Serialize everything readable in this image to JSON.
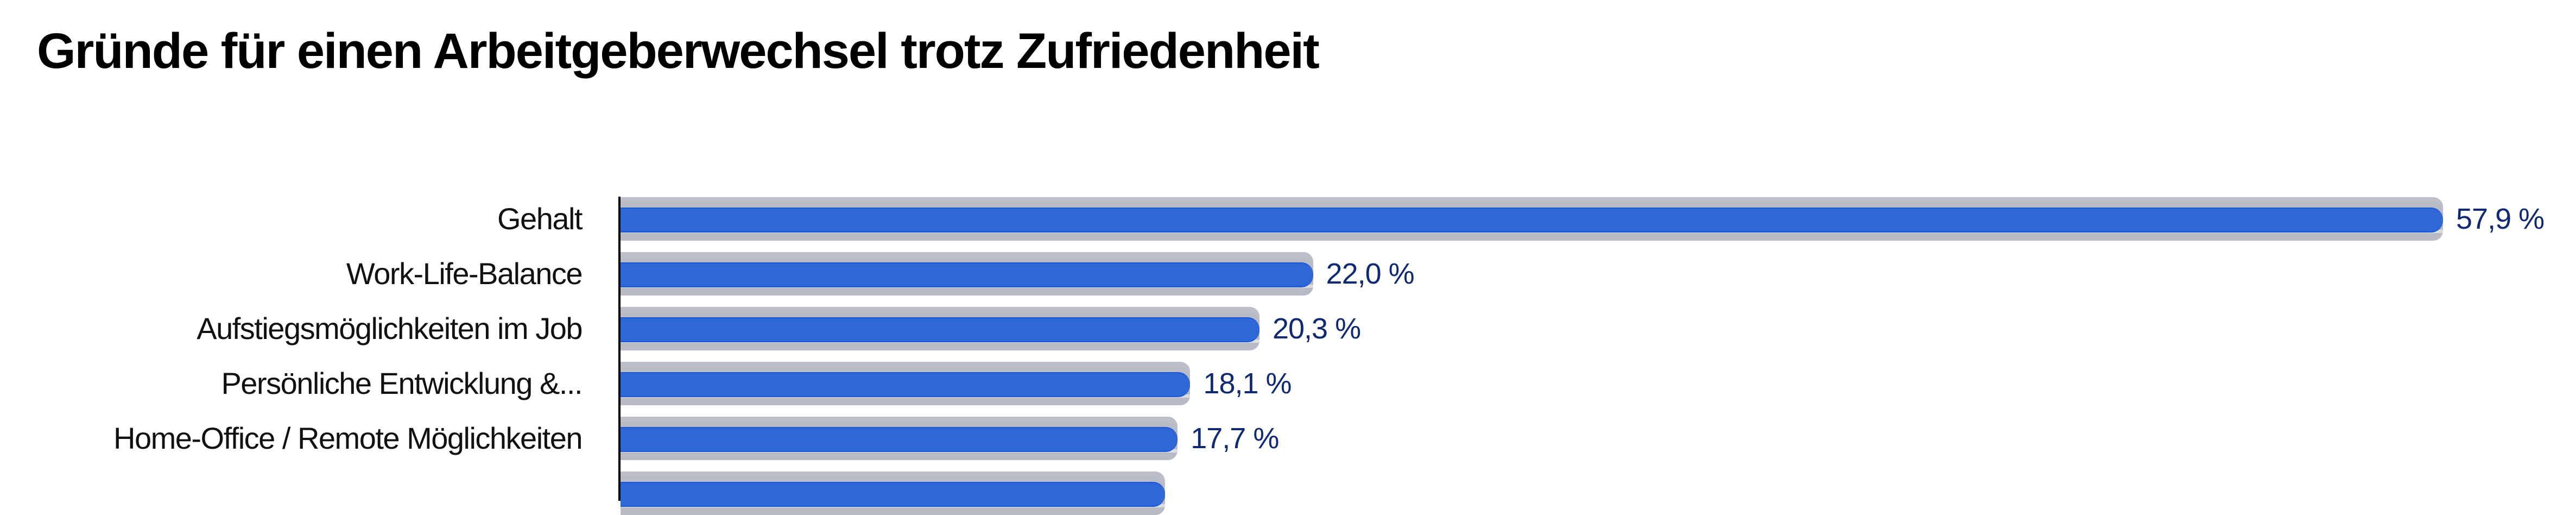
{
  "title": "Gründe für einen Arbeitgeberwechsel trotz Zufriedenheit",
  "colors": {
    "bar": "#2d68d6",
    "bar_background": "#b9bcc7",
    "value_label": "#0f2a73",
    "axis": "#000000"
  },
  "chart_data": {
    "type": "bar",
    "orientation": "horizontal",
    "title": "Gründe für einen Arbeitgeberwechsel trotz Zufriedenheit",
    "xlabel": "",
    "ylabel": "",
    "unit": "%",
    "categories": [
      "Gehalt",
      "Work-Life-Balance",
      "Aufstiegsmöglichkeiten im Job",
      "Persönliche Entwicklung &...",
      "Home-Office / Remote Möglichkeiten",
      ""
    ],
    "values": [
      57.9,
      22.0,
      20.3,
      18.1,
      17.7,
      17.3
    ],
    "value_labels": [
      "57,9 %",
      "22,0 %",
      "20,3 %",
      "18,1 %",
      "17,7 %",
      ""
    ],
    "xlim": [
      0,
      57.9
    ],
    "grid": false,
    "legend": null,
    "note": "Sixth bar is cut off at the bottom edge; its label and value are not visible (value estimated)."
  },
  "rows": [
    {
      "label": "Gehalt",
      "value": 57.9,
      "value_label": "57,9 %"
    },
    {
      "label": "Work-Life-Balance",
      "value": 22.0,
      "value_label": "22,0 %"
    },
    {
      "label": "Aufstiegsmöglichkeiten im Job",
      "value": 20.3,
      "value_label": "20,3 %"
    },
    {
      "label": "Persönliche Entwicklung &...",
      "value": 18.1,
      "value_label": "18,1 %"
    },
    {
      "label": "Home-Office / Remote Möglichkeiten",
      "value": 17.7,
      "value_label": "17,7 %"
    },
    {
      "label": "",
      "value": 17.3,
      "value_label": ""
    }
  ]
}
